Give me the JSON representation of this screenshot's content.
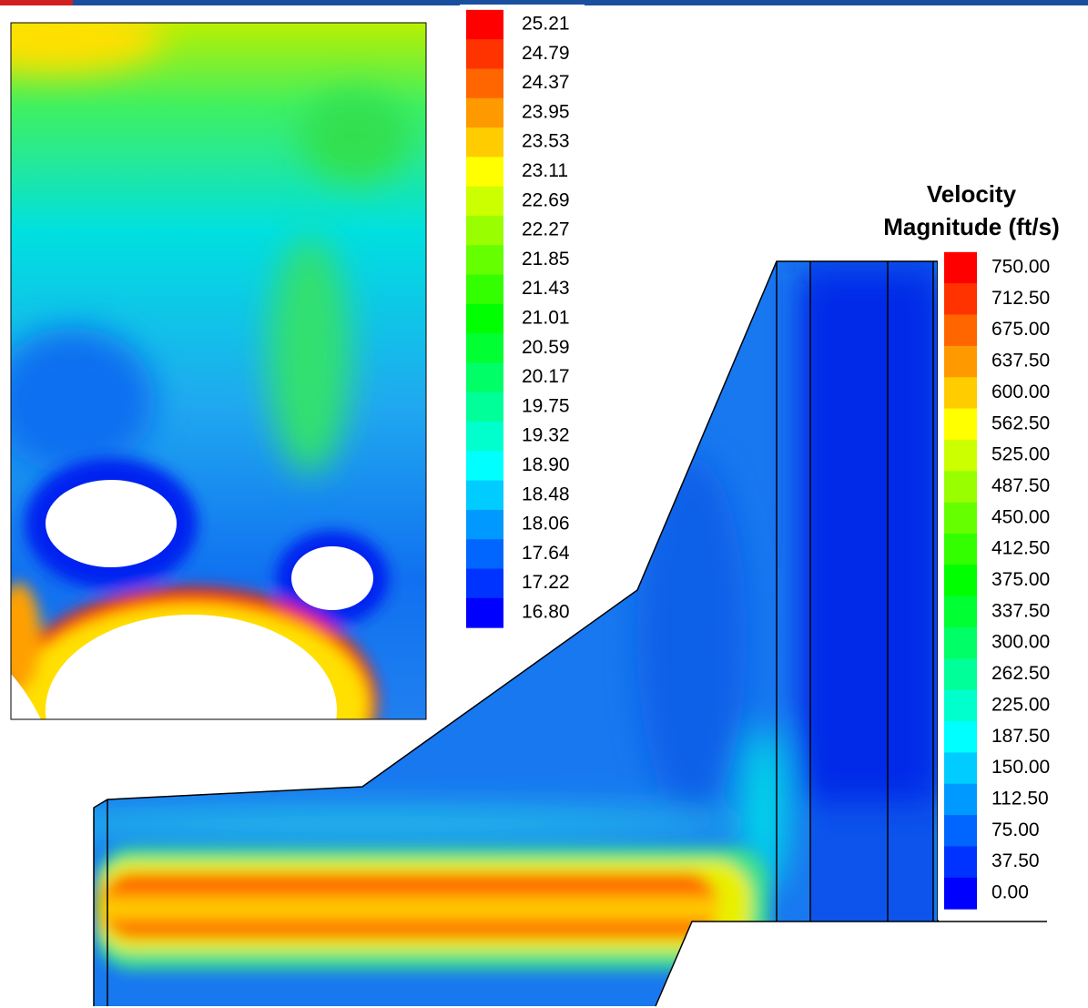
{
  "left_plot": {
    "colorbar": {
      "labels": [
        "25.21",
        "24.79",
        "24.37",
        "23.95",
        "23.53",
        "23.11",
        "22.69",
        "22.27",
        "21.85",
        "21.43",
        "21.01",
        "20.59",
        "20.17",
        "19.75",
        "19.32",
        "18.90",
        "18.48",
        "18.06",
        "17.64",
        "17.22",
        "16.80"
      ]
    }
  },
  "right_plot": {
    "colorbar": {
      "title_lines": [
        "Velocity",
        "Magnitude (ft/s)"
      ],
      "labels": [
        "750.00",
        "712.50",
        "675.00",
        "637.50",
        "600.00",
        "562.50",
        "525.00",
        "487.50",
        "450.00",
        "412.50",
        "375.00",
        "337.50",
        "300.00",
        "262.50",
        "225.00",
        "187.50",
        "150.00",
        "112.50",
        "75.00",
        "37.50",
        "0.00"
      ]
    }
  }
}
